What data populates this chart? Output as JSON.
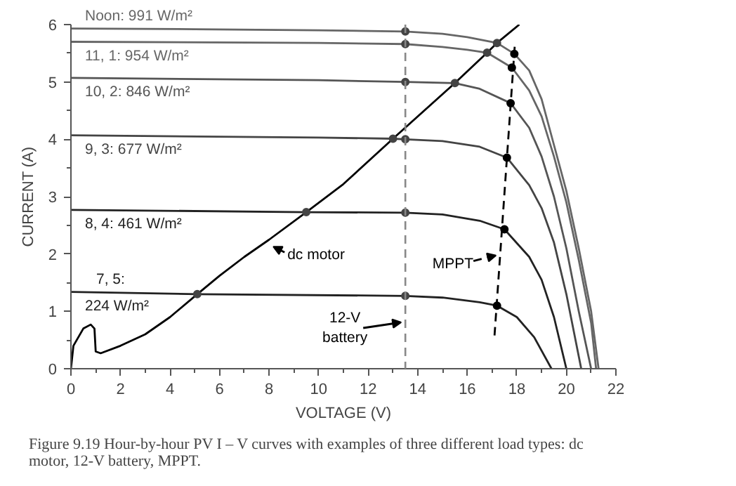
{
  "chart_data": {
    "type": "line",
    "xlabel": "VOLTAGE (V)",
    "ylabel": "CURRENT (A)",
    "xlim": [
      0,
      22
    ],
    "ylim": [
      0,
      6
    ],
    "xticks": [
      0,
      2,
      4,
      6,
      8,
      10,
      12,
      14,
      16,
      18,
      20,
      22
    ],
    "yticks": [
      0,
      1,
      2,
      3,
      4,
      5,
      6
    ],
    "line_style": "solid",
    "series": [
      {
        "name": "Noon:  991 W/m²",
        "color": "#666666",
        "x": [
          0,
          5,
          10,
          13.5,
          15,
          16,
          17.2,
          17.9,
          18.5,
          19,
          19.5,
          20,
          20.5,
          21,
          21.3
        ],
        "values": [
          5.93,
          5.92,
          5.9,
          5.88,
          5.84,
          5.78,
          5.68,
          5.49,
          5.2,
          4.7,
          3.9,
          3.1,
          2.1,
          1.0,
          0
        ]
      },
      {
        "name": "11, 1:  954 W/m²",
        "color": "#666666",
        "x": [
          0,
          10,
          13.5,
          15,
          16,
          16.8,
          17.8,
          18.5,
          19,
          19.5,
          20,
          20.5,
          21,
          21.2
        ],
        "values": [
          5.7,
          5.68,
          5.66,
          5.61,
          5.56,
          5.51,
          5.25,
          4.85,
          4.4,
          3.7,
          2.9,
          1.9,
          0.8,
          0
        ]
      },
      {
        "name": "10, 2:  846 W/m²",
        "color": "#555555",
        "x": [
          0,
          10,
          13.5,
          15.5,
          16.5,
          17.75,
          18.5,
          19,
          19.5,
          20,
          20.5,
          21
        ],
        "values": [
          5.07,
          5.03,
          5.0,
          4.98,
          4.88,
          4.63,
          4.2,
          3.7,
          3.0,
          2.1,
          1.0,
          0
        ]
      },
      {
        "name": "9, 3:  677 W/m²",
        "color": "#444444",
        "x": [
          0,
          10,
          13,
          13.5,
          15,
          16.5,
          17.6,
          18.5,
          19,
          19.5,
          20,
          20.6
        ],
        "values": [
          4.07,
          4.03,
          4.01,
          4.0,
          3.97,
          3.87,
          3.68,
          3.2,
          2.8,
          2.2,
          1.3,
          0
        ]
      },
      {
        "name": "8, 4:  461 W/m²",
        "color": "#222222",
        "x": [
          0,
          9.5,
          13.5,
          15,
          16.5,
          17.5,
          18.5,
          19,
          19.5,
          20
        ],
        "values": [
          2.77,
          2.73,
          2.72,
          2.69,
          2.58,
          2.43,
          1.95,
          1.55,
          0.9,
          0
        ]
      },
      {
        "name": "7, 5:\n224 W/m²",
        "color": "#222222",
        "x": [
          0,
          5.1,
          13.5,
          15,
          16.5,
          17.2,
          18,
          18.7,
          19.4
        ],
        "values": [
          1.34,
          1.3,
          1.27,
          1.24,
          1.16,
          1.1,
          0.9,
          0.55,
          0
        ]
      },
      {
        "name": "dc motor",
        "color": "#000000",
        "x": [
          0,
          0.1,
          0.5,
          0.8,
          0.95,
          1.0,
          1.2,
          2,
          3,
          4,
          5.1,
          6,
          7,
          8,
          9.5,
          11,
          13,
          15.5,
          16.8,
          17.2,
          18.1
        ],
        "values": [
          0,
          0.4,
          0.7,
          0.77,
          0.7,
          0.3,
          0.27,
          0.4,
          0.6,
          0.9,
          1.3,
          1.62,
          1.95,
          2.25,
          2.73,
          3.22,
          4.01,
          4.98,
          5.51,
          5.68,
          6.0
        ]
      },
      {
        "name": "MPPT",
        "color": "#000000",
        "line_style": "dashed",
        "x": [
          17.1,
          17.92
        ],
        "values": [
          0.58,
          5.65
        ]
      },
      {
        "type": "scatter",
        "marker": "circle",
        "color": "#000000",
        "x": [
          17.2,
          17.5,
          17.6,
          17.75,
          17.8,
          17.9
        ],
        "values": [
          1.1,
          2.43,
          3.68,
          4.63,
          5.25,
          5.49
        ]
      },
      {
        "type": "scatter",
        "marker": "circle",
        "color": "#444444",
        "x": [
          13.5,
          13.5,
          13.5,
          13.5,
          13.5,
          13.5,
          5.1,
          9.5,
          13.0,
          15.5,
          16.8,
          17.2
        ],
        "values": [
          5.88,
          5.66,
          5.0,
          4.0,
          2.72,
          1.27,
          1.3,
          2.73,
          4.01,
          4.98,
          5.51,
          5.68
        ]
      }
    ],
    "ref_lines": [
      {
        "axis": "x",
        "value": 13.5,
        "label": "12-V\nbattery",
        "color": "#888888",
        "line_style": "dashed"
      }
    ],
    "annotations": [
      "Figure 9.19  Hour-by-hour PV I – V curves with examples of three different load types: dc motor, 12-V battery, MPPT."
    ]
  }
}
